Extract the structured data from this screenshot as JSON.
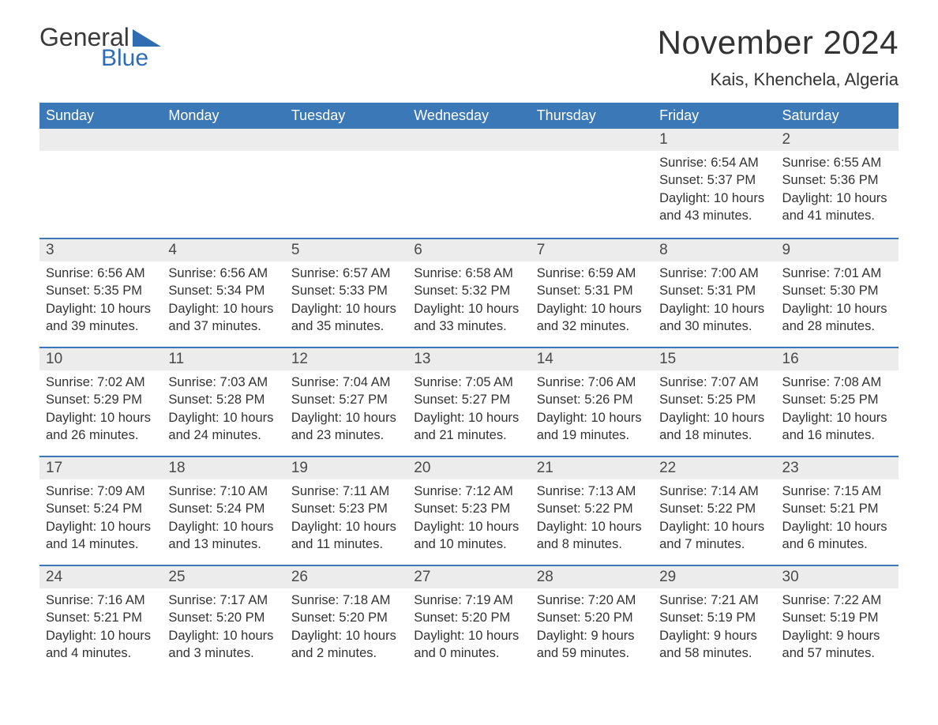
{
  "logo": {
    "part1": "General",
    "part2": "Blue"
  },
  "title": "November 2024",
  "location": "Kais, Khenchela, Algeria",
  "colors": {
    "header_bg": "#3b78b8",
    "header_text": "#ffffff",
    "daynum_bg": "#ececec",
    "row_border": "#3b78b8",
    "body_text": "#333333",
    "logo_blue": "#2f6db3",
    "logo_dark": "#3a3a3a",
    "page_bg": "#ffffff"
  },
  "weekdays": [
    "Sunday",
    "Monday",
    "Tuesday",
    "Wednesday",
    "Thursday",
    "Friday",
    "Saturday"
  ],
  "weeks": [
    [
      {
        "blank": true
      },
      {
        "blank": true
      },
      {
        "blank": true
      },
      {
        "blank": true
      },
      {
        "blank": true
      },
      {
        "day": "1",
        "sunrise": "6:54 AM",
        "sunset": "5:37 PM",
        "daylight": "10 hours and 43 minutes."
      },
      {
        "day": "2",
        "sunrise": "6:55 AM",
        "sunset": "5:36 PM",
        "daylight": "10 hours and 41 minutes."
      }
    ],
    [
      {
        "day": "3",
        "sunrise": "6:56 AM",
        "sunset": "5:35 PM",
        "daylight": "10 hours and 39 minutes."
      },
      {
        "day": "4",
        "sunrise": "6:56 AM",
        "sunset": "5:34 PM",
        "daylight": "10 hours and 37 minutes."
      },
      {
        "day": "5",
        "sunrise": "6:57 AM",
        "sunset": "5:33 PM",
        "daylight": "10 hours and 35 minutes."
      },
      {
        "day": "6",
        "sunrise": "6:58 AM",
        "sunset": "5:32 PM",
        "daylight": "10 hours and 33 minutes."
      },
      {
        "day": "7",
        "sunrise": "6:59 AM",
        "sunset": "5:31 PM",
        "daylight": "10 hours and 32 minutes."
      },
      {
        "day": "8",
        "sunrise": "7:00 AM",
        "sunset": "5:31 PM",
        "daylight": "10 hours and 30 minutes."
      },
      {
        "day": "9",
        "sunrise": "7:01 AM",
        "sunset": "5:30 PM",
        "daylight": "10 hours and 28 minutes."
      }
    ],
    [
      {
        "day": "10",
        "sunrise": "7:02 AM",
        "sunset": "5:29 PM",
        "daylight": "10 hours and 26 minutes."
      },
      {
        "day": "11",
        "sunrise": "7:03 AM",
        "sunset": "5:28 PM",
        "daylight": "10 hours and 24 minutes."
      },
      {
        "day": "12",
        "sunrise": "7:04 AM",
        "sunset": "5:27 PM",
        "daylight": "10 hours and 23 minutes."
      },
      {
        "day": "13",
        "sunrise": "7:05 AM",
        "sunset": "5:27 PM",
        "daylight": "10 hours and 21 minutes."
      },
      {
        "day": "14",
        "sunrise": "7:06 AM",
        "sunset": "5:26 PM",
        "daylight": "10 hours and 19 minutes."
      },
      {
        "day": "15",
        "sunrise": "7:07 AM",
        "sunset": "5:25 PM",
        "daylight": "10 hours and 18 minutes."
      },
      {
        "day": "16",
        "sunrise": "7:08 AM",
        "sunset": "5:25 PM",
        "daylight": "10 hours and 16 minutes."
      }
    ],
    [
      {
        "day": "17",
        "sunrise": "7:09 AM",
        "sunset": "5:24 PM",
        "daylight": "10 hours and 14 minutes."
      },
      {
        "day": "18",
        "sunrise": "7:10 AM",
        "sunset": "5:24 PM",
        "daylight": "10 hours and 13 minutes."
      },
      {
        "day": "19",
        "sunrise": "7:11 AM",
        "sunset": "5:23 PM",
        "daylight": "10 hours and 11 minutes."
      },
      {
        "day": "20",
        "sunrise": "7:12 AM",
        "sunset": "5:23 PM",
        "daylight": "10 hours and 10 minutes."
      },
      {
        "day": "21",
        "sunrise": "7:13 AM",
        "sunset": "5:22 PM",
        "daylight": "10 hours and 8 minutes."
      },
      {
        "day": "22",
        "sunrise": "7:14 AM",
        "sunset": "5:22 PM",
        "daylight": "10 hours and 7 minutes."
      },
      {
        "day": "23",
        "sunrise": "7:15 AM",
        "sunset": "5:21 PM",
        "daylight": "10 hours and 6 minutes."
      }
    ],
    [
      {
        "day": "24",
        "sunrise": "7:16 AM",
        "sunset": "5:21 PM",
        "daylight": "10 hours and 4 minutes."
      },
      {
        "day": "25",
        "sunrise": "7:17 AM",
        "sunset": "5:20 PM",
        "daylight": "10 hours and 3 minutes."
      },
      {
        "day": "26",
        "sunrise": "7:18 AM",
        "sunset": "5:20 PM",
        "daylight": "10 hours and 2 minutes."
      },
      {
        "day": "27",
        "sunrise": "7:19 AM",
        "sunset": "5:20 PM",
        "daylight": "10 hours and 0 minutes."
      },
      {
        "day": "28",
        "sunrise": "7:20 AM",
        "sunset": "5:20 PM",
        "daylight": "9 hours and 59 minutes."
      },
      {
        "day": "29",
        "sunrise": "7:21 AM",
        "sunset": "5:19 PM",
        "daylight": "9 hours and 58 minutes."
      },
      {
        "day": "30",
        "sunrise": "7:22 AM",
        "sunset": "5:19 PM",
        "daylight": "9 hours and 57 minutes."
      }
    ]
  ],
  "labels": {
    "sunrise": "Sunrise: ",
    "sunset": "Sunset: ",
    "daylight": "Daylight: "
  }
}
